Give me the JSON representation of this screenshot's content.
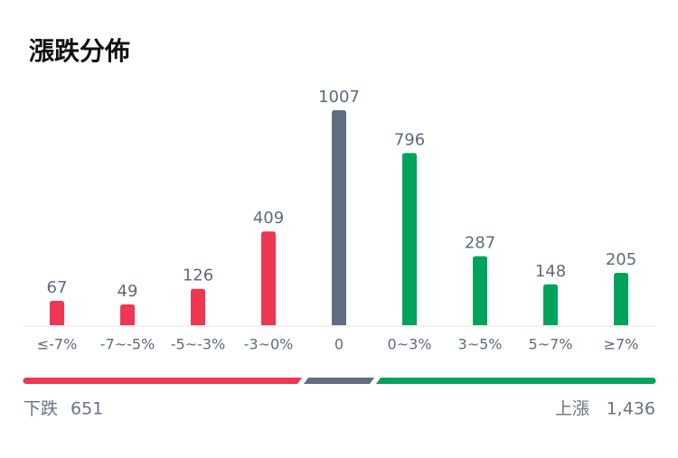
{
  "chart_data": {
    "type": "bar",
    "title": "漲跌分佈",
    "categories": [
      "≤-7%",
      "-7~-5%",
      "-5~-3%",
      "-3~0%",
      "0",
      "0~3%",
      "3~5%",
      "5~7%",
      "≥7%"
    ],
    "values": [
      67,
      49,
      126,
      409,
      1007,
      796,
      287,
      148,
      205
    ],
    "colors": [
      "#ef3752",
      "#ef3752",
      "#ef3752",
      "#ef3752",
      "#616d82",
      "#00a35b",
      "#00a35b",
      "#00a35b",
      "#00a35b"
    ]
  },
  "summary": {
    "down": {
      "label": "下跌",
      "value": 651
    },
    "up": {
      "label": "上漲",
      "value": 1436,
      "value_label": "1,436"
    }
  }
}
